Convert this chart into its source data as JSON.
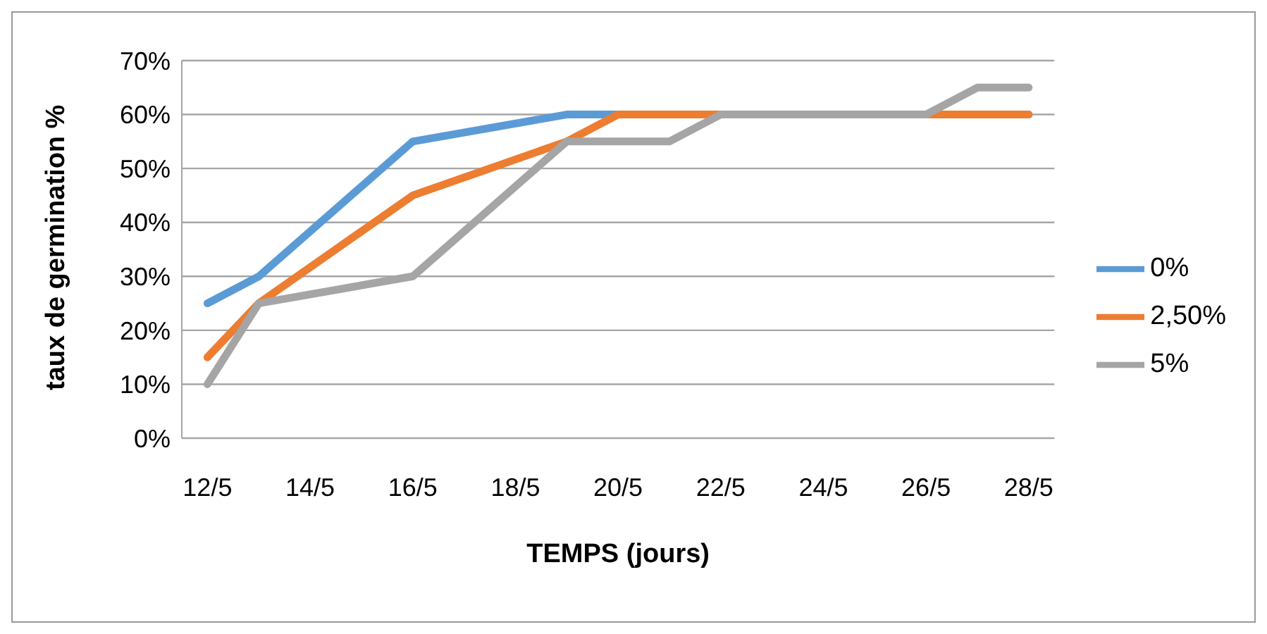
{
  "chart_data": {
    "type": "line",
    "xlabel": "TEMPS (jours)",
    "ylabel": "taux de germination %",
    "xlim": [
      "--05-11T12:00",
      "--05-28T12:00"
    ],
    "xticks": [
      {
        "value": "--05-12",
        "label": "12/5"
      },
      {
        "value": "--05-14",
        "label": "14/5"
      },
      {
        "value": "--05-16",
        "label": "16/5"
      },
      {
        "value": "--05-18",
        "label": "18/5"
      },
      {
        "value": "--05-20",
        "label": "20/5"
      },
      {
        "value": "--05-22",
        "label": "22/5"
      },
      {
        "value": "--05-24",
        "label": "24/5"
      },
      {
        "value": "--05-26",
        "label": "26/5"
      },
      {
        "value": "--05-28",
        "label": "28/5"
      }
    ],
    "ylim": [
      0,
      70
    ],
    "yticks": [
      {
        "value": 0,
        "label": "0%"
      },
      {
        "value": 10,
        "label": "10%"
      },
      {
        "value": 20,
        "label": "20%"
      },
      {
        "value": 30,
        "label": "30%"
      },
      {
        "value": 40,
        "label": "40%"
      },
      {
        "value": 50,
        "label": "50%"
      },
      {
        "value": 60,
        "label": "60%"
      },
      {
        "value": 70,
        "label": "70%"
      }
    ],
    "grid": "y",
    "legend": "right",
    "marker": "none",
    "line_style": "solid",
    "series": [
      {
        "name": "0%",
        "color": "#5b9bd5",
        "x": [
          "--05-12",
          "--05-13",
          "--05-16",
          "--05-19",
          "--05-28"
        ],
        "values": [
          25,
          30,
          55,
          60,
          60
        ]
      },
      {
        "name": "2,50%",
        "color": "#ed7d31",
        "x": [
          "--05-12",
          "--05-13",
          "--05-16",
          "--05-19",
          "--05-20",
          "--05-28"
        ],
        "values": [
          15,
          25,
          45,
          55,
          60,
          60
        ]
      },
      {
        "name": "5%",
        "color": "#a5a5a5",
        "x": [
          "--05-12",
          "--05-13",
          "--05-16",
          "--05-19",
          "--05-21",
          "--05-22",
          "--05-26",
          "--05-27",
          "--05-28"
        ],
        "values": [
          10,
          25,
          30,
          55,
          55,
          60,
          60,
          65,
          65
        ]
      }
    ]
  }
}
